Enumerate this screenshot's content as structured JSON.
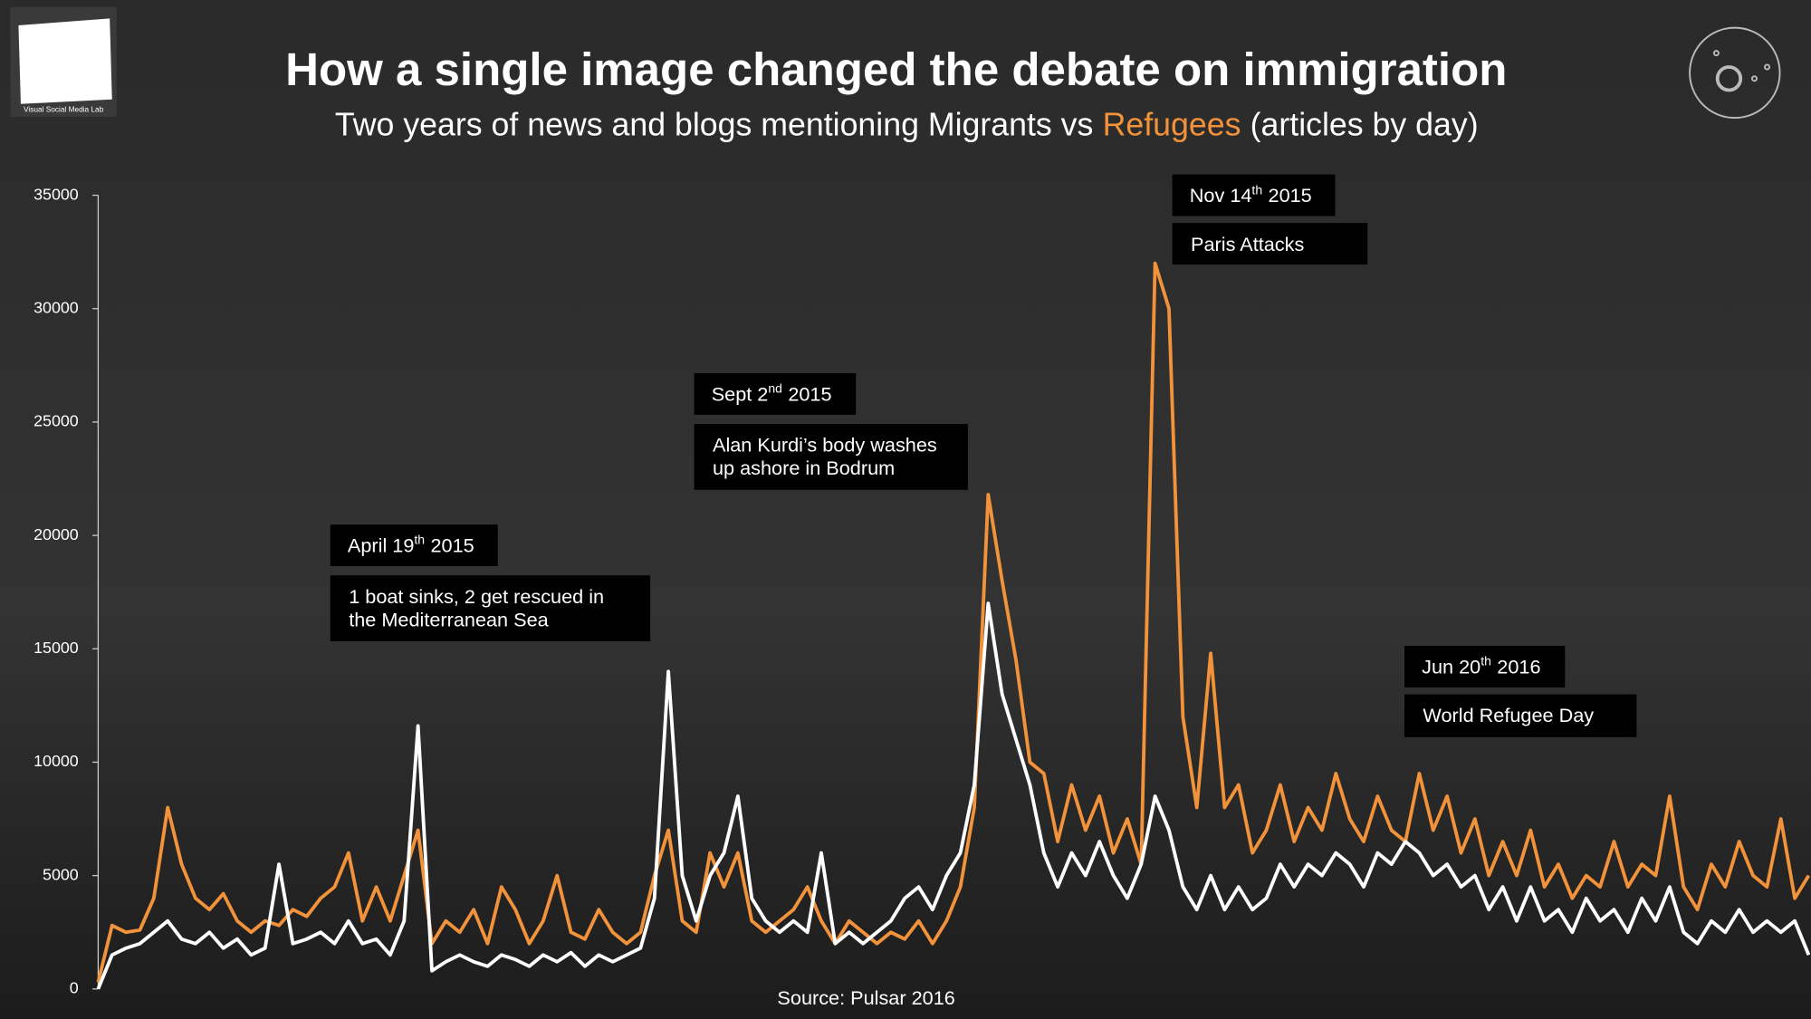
{
  "logo": {
    "text": "Visual Social Media Lab"
  },
  "chart_data": {
    "type": "line",
    "title": "How a single image changed the debate on immigration",
    "subtitle": {
      "before": "Two years of news and blogs mentioning Migrants vs",
      "highlight": "Refugees",
      "after": "(articles by day)"
    },
    "source": "Source: Pulsar 2016",
    "ylim": [
      0,
      35000
    ],
    "yticks": [
      0,
      5000,
      10000,
      15000,
      20000,
      25000,
      30000,
      35000
    ],
    "series": [
      {
        "color": "#f2923a",
        "values": [
          300,
          2800,
          2500,
          2600,
          4000,
          8000,
          5500,
          4000,
          3500,
          4200,
          3000,
          2500,
          3000,
          2800,
          3500,
          3200,
          4000,
          4500,
          6000,
          3000,
          4500,
          3000,
          5000,
          7000,
          2000,
          3000,
          2500,
          3500,
          2000,
          4500,
          3500,
          2000,
          3000,
          5000,
          2500,
          2200,
          3500,
          2500,
          2000,
          2500,
          5000,
          7000,
          3000,
          2500,
          6000,
          4500,
          6000,
          3000,
          2500,
          3000,
          3500,
          4500,
          3000,
          2000,
          3000,
          2500,
          2000,
          2500,
          2200,
          3000,
          2000,
          3000,
          4500,
          8000,
          21800,
          18000,
          14500,
          10000,
          9500,
          6500,
          9000,
          7000,
          8500,
          6000,
          7500,
          5500,
          32000,
          30000,
          12000,
          8000,
          14800,
          8000,
          9000,
          6000,
          7000,
          9000,
          6500,
          8000,
          7000,
          9500,
          7500,
          6500,
          8500,
          7000,
          6500,
          9500,
          7000,
          8500,
          6000,
          7500,
          5000,
          6500,
          5000,
          7000,
          4500,
          5500,
          4000,
          5000,
          4500,
          6500,
          4500,
          5500,
          5000,
          8500,
          4500,
          3500,
          5500,
          4500,
          6500,
          5000,
          4500,
          7500,
          4000,
          5000
        ]
      },
      {
        "color": "#ffffff",
        "values": [
          0,
          1500,
          1800,
          2000,
          2500,
          3000,
          2200,
          2000,
          2500,
          1800,
          2200,
          1500,
          1800,
          5500,
          2000,
          2200,
          2500,
          2000,
          3000,
          2000,
          2200,
          1500,
          3000,
          11600,
          800,
          1200,
          1500,
          1200,
          1000,
          1500,
          1300,
          1000,
          1500,
          1200,
          1600,
          1000,
          1500,
          1200,
          1500,
          1800,
          4000,
          14000,
          5000,
          3000,
          5000,
          6000,
          8500,
          4000,
          3000,
          2500,
          3000,
          2500,
          6000,
          2000,
          2500,
          2000,
          2500,
          3000,
          4000,
          4500,
          3500,
          5000,
          6000,
          9000,
          17000,
          13000,
          11000,
          9000,
          6000,
          4500,
          6000,
          5000,
          6500,
          5000,
          4000,
          5500,
          8500,
          7000,
          4500,
          3500,
          5000,
          3500,
          4500,
          3500,
          4000,
          5500,
          4500,
          5500,
          5000,
          6000,
          5500,
          4500,
          6000,
          5500,
          6500,
          6000,
          5000,
          5500,
          4500,
          5000,
          3500,
          4500,
          3000,
          4500,
          3000,
          3500,
          2500,
          4000,
          3000,
          3500,
          2500,
          4000,
          3000,
          4500,
          2500,
          2000,
          3000,
          2500,
          3500,
          2500,
          3000,
          2500,
          3000,
          1500
        ]
      }
    ],
    "annotations": [
      {
        "date": {
          "main": "April 19",
          "sup": "th",
          "year": "2015"
        },
        "text": [
          "1 boat sinks, 2 get rescued in",
          "the Mediterranean Sea"
        ]
      },
      {
        "date": {
          "main": "Sept 2",
          "sup": "nd",
          "year": "2015"
        },
        "text": [
          "Alan Kurdi’s body washes",
          "up ashore in Bodrum"
        ]
      },
      {
        "date": {
          "main": "Nov 14",
          "sup": "th",
          "year": "2015"
        },
        "text": [
          "Paris Attacks"
        ]
      },
      {
        "date": {
          "main": "Jun 20",
          "sup": "th",
          "year": "2016"
        },
        "text": [
          "World Refugee Day"
        ]
      }
    ]
  }
}
